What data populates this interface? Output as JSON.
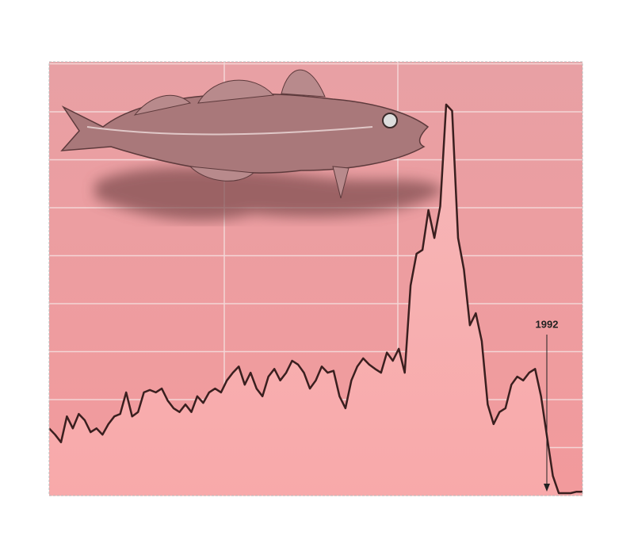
{
  "chart_data": {
    "type": "area",
    "values": [
      1.4,
      1.27,
      1.11,
      1.65,
      1.4,
      1.7,
      1.57,
      1.32,
      1.4,
      1.27,
      1.49,
      1.65,
      1.7,
      2.15,
      1.65,
      1.74,
      2.15,
      2.2,
      2.15,
      2.23,
      1.98,
      1.82,
      1.74,
      1.9,
      1.74,
      2.07,
      1.93,
      2.15,
      2.23,
      2.15,
      2.4,
      2.56,
      2.69,
      2.31,
      2.56,
      2.23,
      2.07,
      2.48,
      2.64,
      2.4,
      2.56,
      2.81,
      2.73,
      2.56,
      2.23,
      2.4,
      2.69,
      2.56,
      2.6,
      2.07,
      1.82,
      2.4,
      2.69,
      2.86,
      2.73,
      2.64,
      2.56,
      2.98,
      2.81,
      3.06,
      2.56,
      4.38,
      5.04,
      5.12,
      5.95,
      5.37,
      6.03,
      8.15,
      8.02,
      5.37,
      4.71,
      3.55,
      3.8,
      3.22,
      1.9,
      1.49,
      1.74,
      1.82,
      2.31,
      2.48,
      2.4,
      2.56,
      2.64,
      2.07,
      1.24,
      0.41,
      0.05,
      0.05,
      0.05,
      0.08,
      0.08
    ],
    "color": "#3a1f1f",
    "ylim": [
      0,
      9
    ],
    "yticks": [
      0,
      1,
      2,
      3,
      4,
      5,
      6,
      7,
      8,
      9
    ],
    "grid": true,
    "annotation": "1992"
  }
}
